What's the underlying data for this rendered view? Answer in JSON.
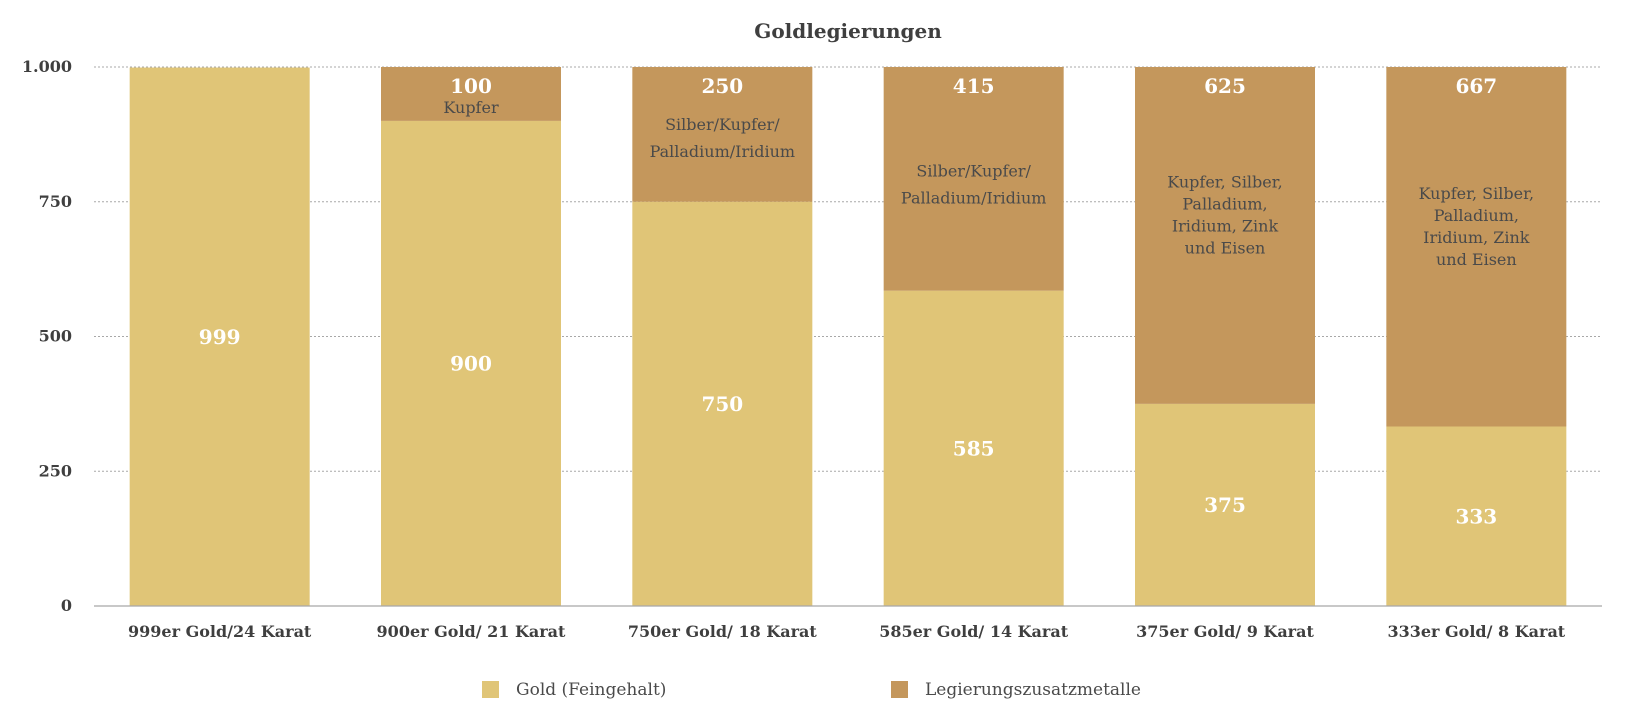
{
  "chart_data": {
    "type": "bar",
    "stacked": true,
    "title": "Goldlegierungen",
    "xlabel": "",
    "ylabel": "",
    "ylim": [
      0,
      1000
    ],
    "yticks": [
      0,
      250,
      500,
      750,
      1000
    ],
    "ytick_labels": [
      "0",
      "250",
      "500",
      "750",
      "1.000"
    ],
    "grid": true,
    "legend_position": "bottom",
    "categories": [
      "999er Gold/24 Karat",
      "900er Gold/ 21 Karat",
      "750er Gold/ 18 Karat",
      "585er Gold/ 14 Karat",
      "375er Gold/ 9 Karat",
      "333er Gold/ 8 Karat"
    ],
    "series": [
      {
        "name": "Gold (Feingehalt)",
        "color": "#e0c577",
        "values": [
          999,
          900,
          750,
          585,
          375,
          333
        ]
      },
      {
        "name": "Legierungszusatzmetalle",
        "color": "#c4975c",
        "values": [
          0,
          100,
          250,
          415,
          625,
          667
        ]
      }
    ],
    "alloy_labels": [
      [],
      [
        "Kupfer"
      ],
      [
        "Silber/Kupfer/",
        "Palladium/Iridium"
      ],
      [
        "Silber/Kupfer/",
        "Palladium/Iridium"
      ],
      [
        "Kupfer, Silber,",
        "Palladium,",
        "Iridium, Zink",
        "und Eisen"
      ],
      [
        "Kupfer, Silber,",
        "Palladium,",
        "Iridium, Zink",
        "und Eisen"
      ]
    ]
  }
}
